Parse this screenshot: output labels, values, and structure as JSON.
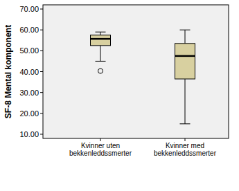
{
  "chart_data": {
    "type": "box",
    "y_label": "SF-8 Mental komponent",
    "categories": [
      "Kvinner uten bekkenleddssmerter",
      "Kvinner med bekkenleddssmerter"
    ],
    "boxes": [
      {
        "min": 45,
        "q1": 52.5,
        "median": 55.7,
        "q3": 57.5,
        "max": 59,
        "outliers": [
          40.3
        ]
      },
      {
        "min": 15,
        "q1": 36.5,
        "median": 47.5,
        "q3": 53.5,
        "max": 60,
        "outliers": []
      }
    ],
    "color": "#d8d0a0",
    "ylim": [
      8,
      72
    ],
    "yticks": [
      {
        "value": 10,
        "label": "10.00"
      },
      {
        "value": 20,
        "label": "20.00"
      },
      {
        "value": 30,
        "label": "30.00"
      },
      {
        "value": 40,
        "label": "40.00"
      },
      {
        "value": 50,
        "label": "50.00"
      },
      {
        "value": 60,
        "label": "60.00"
      },
      {
        "value": 70,
        "label": "70.00"
      }
    ]
  }
}
